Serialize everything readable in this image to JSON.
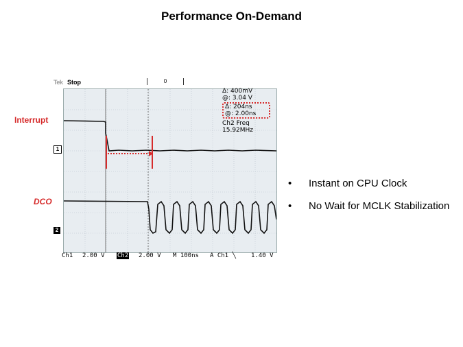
{
  "slide": {
    "title": "Performance On-Demand",
    "bullets": [
      "Instant on CPU Clock",
      "No Wait for MCLK Stabilization"
    ]
  },
  "scope": {
    "brand": "Tek",
    "state": "Stop",
    "trigger_marker": "0",
    "readout": {
      "delta_v": "Δ:   400mV",
      "at_v": "@:   3.04 V",
      "delta_t": "Δ:   204ns",
      "at_t": "@:   2.00ns",
      "freq_label": "Ch2 Freq",
      "freq_value": "15.92MHz"
    },
    "footer": {
      "ch1": "Ch1",
      "ch1_scale": "2.00 V",
      "ch2": "Ch2",
      "ch2_scale": "2.00 V",
      "timebase": "M 100ns",
      "trigger": "A  Ch1  ╲",
      "trigger_level": "1.40 V"
    },
    "channel_markers": [
      "1",
      "2"
    ],
    "labels": {
      "interrupt": "Interrupt",
      "dco": "DCO"
    },
    "colors": {
      "annotation": "#d62b2b",
      "screen_bg": "#e8edf1",
      "trace": "#111111"
    }
  }
}
